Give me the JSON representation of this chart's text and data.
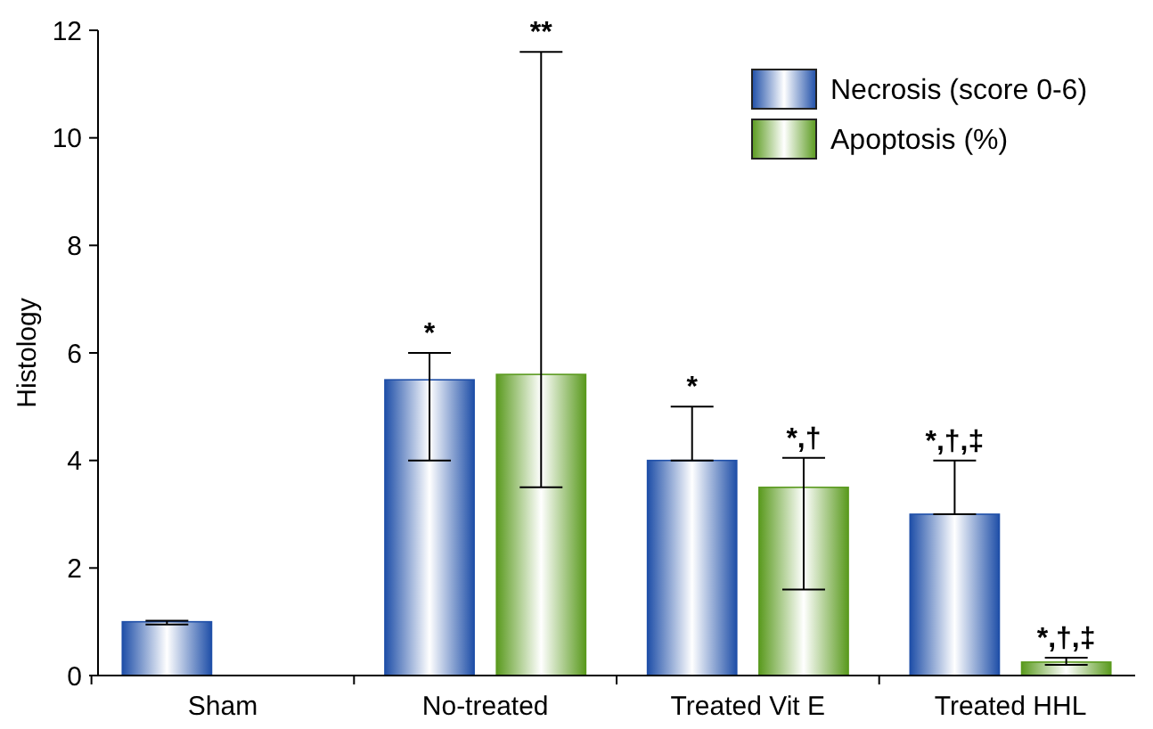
{
  "chart_data": {
    "type": "bar",
    "ylabel": "Histology",
    "categories": [
      "Sham",
      "No-treated",
      "Treated Vit E",
      "Treated HHL"
    ],
    "series": [
      {
        "name": "Necrosis (score 0-6)",
        "color": "#1f4fa8",
        "values": [
          1.0,
          5.5,
          4.0,
          3.0
        ],
        "errors": [
          [
            0.95,
            1.02
          ],
          [
            4.0,
            6.0
          ],
          [
            4.0,
            5.0
          ],
          [
            3.0,
            4.0
          ]
        ]
      },
      {
        "name": "Apoptosis (%)",
        "color": "#5a9a1e",
        "values": [
          null,
          5.6,
          3.5,
          0.25
        ],
        "errors": [
          null,
          [
            3.5,
            11.6
          ],
          [
            1.6,
            4.05
          ],
          [
            0.2,
            0.33
          ]
        ]
      }
    ],
    "ylim": [
      0,
      12
    ],
    "yticks": [
      0,
      2,
      4,
      6,
      8,
      10,
      12
    ],
    "legend": "top right",
    "grid": false,
    "annotations": [
      "*",
      "**",
      "*",
      "*,†",
      "*,†,‡",
      "*,†,‡"
    ]
  }
}
